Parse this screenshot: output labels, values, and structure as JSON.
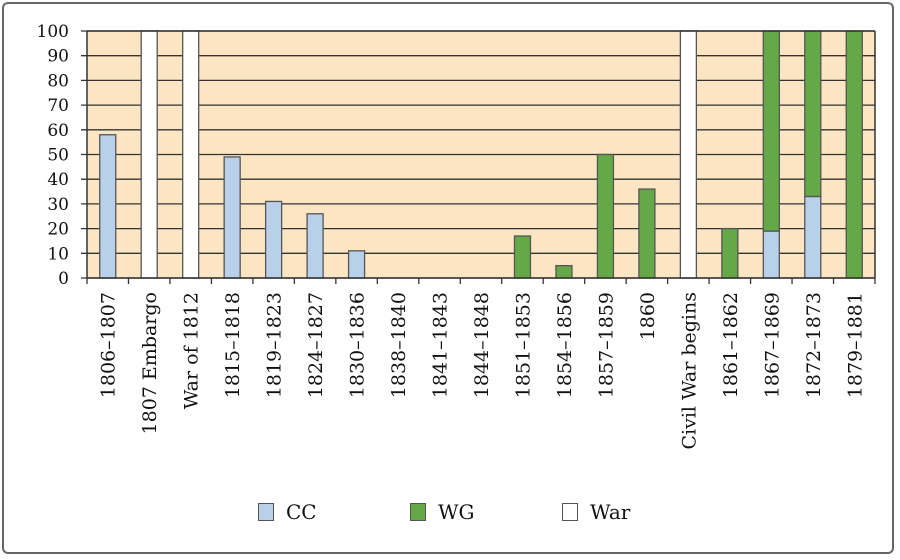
{
  "chart_data": {
    "type": "bar",
    "stacked": true,
    "title": "",
    "xlabel": "",
    "ylabel": "",
    "ylim": [
      0,
      100
    ],
    "yticks": [
      0,
      10,
      20,
      30,
      40,
      50,
      60,
      70,
      80,
      90,
      100
    ],
    "grid": true,
    "legend_position": "bottom",
    "categories": [
      "1806–1807",
      "1807 Embargo",
      "War of 1812",
      "1815–1818",
      "1819–1823",
      "1824–1827",
      "1830–1836",
      "1838–1840",
      "1841–1843",
      "1844–1848",
      "1851–1853",
      "1854–1856",
      "1857–1859",
      "1860",
      "Civil War begins",
      "1861–1862",
      "1867–1869",
      "1872–1873",
      "1879–1881"
    ],
    "series": [
      {
        "name": "CC",
        "color": "#b8d0ea",
        "values": [
          58,
          0,
          0,
          49,
          31,
          26,
          11,
          0,
          0,
          0,
          0,
          0,
          0,
          0,
          0,
          0,
          19,
          33,
          0
        ]
      },
      {
        "name": "WG",
        "color": "#65a847",
        "values": [
          0,
          0,
          0,
          0,
          0,
          0,
          0,
          0,
          0,
          0,
          17,
          5,
          50,
          36,
          0,
          20,
          81,
          67,
          100
        ]
      },
      {
        "name": "War",
        "color": "#ffffff",
        "values": [
          0,
          100,
          100,
          0,
          0,
          0,
          0,
          0,
          0,
          0,
          0,
          0,
          0,
          0,
          100,
          0,
          0,
          0,
          0
        ]
      }
    ],
    "plot_background": "#fbe5c3"
  }
}
